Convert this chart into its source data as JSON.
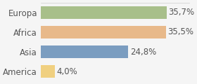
{
  "categories": [
    "Europa",
    "Africa",
    "Asia",
    "America"
  ],
  "values": [
    35.7,
    35.5,
    24.8,
    4.0
  ],
  "labels": [
    "35,7%",
    "35,5%",
    "24,8%",
    "4,0%"
  ],
  "bar_colors": [
    "#a8bf8a",
    "#e8b98a",
    "#7b9dc0",
    "#f0d080"
  ],
  "background_color": "#f5f5f5",
  "xlim": [
    0,
    42
  ],
  "bar_height": 0.62,
  "label_fontsize": 8.5,
  "tick_fontsize": 8.5
}
